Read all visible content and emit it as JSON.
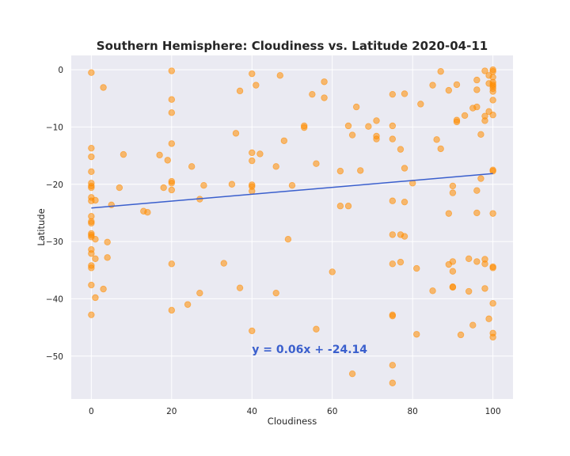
{
  "chart_data": {
    "type": "scatter",
    "title": "Southern Hemisphere: Cloudiness vs. Latitude 2020-04-11",
    "xlabel": "Cloudiness",
    "ylabel": "Latitude",
    "xlim": [
      -5,
      105
    ],
    "ylim": [
      -57.5,
      2.5
    ],
    "xticks": [
      0,
      20,
      40,
      60,
      80,
      100
    ],
    "yticks": [
      0,
      -10,
      -20,
      -30,
      -40,
      -50
    ],
    "grid": true,
    "colors": {
      "background": "#eaeaf2",
      "grid": "#ffffff",
      "points": "#ff8c00",
      "regression": "#3a5fcd",
      "annotation": "#3a5fcd"
    },
    "series": [
      {
        "type": "scatter",
        "points": [
          [
            0,
            -0.5
          ],
          [
            0,
            -13.7
          ],
          [
            0,
            -15.2
          ],
          [
            0,
            -17.8
          ],
          [
            0,
            -19.8
          ],
          [
            0,
            -20.3
          ],
          [
            0,
            -20.6
          ],
          [
            0,
            -22.3
          ],
          [
            0,
            -22.9
          ],
          [
            0,
            -25.6
          ],
          [
            0,
            -26.5
          ],
          [
            0,
            -26.8
          ],
          [
            0,
            -28.6
          ],
          [
            0,
            -28.9
          ],
          [
            0,
            -29.2
          ],
          [
            0,
            -31.4
          ],
          [
            0,
            -32.1
          ],
          [
            0,
            -34.2
          ],
          [
            0,
            -34.6
          ],
          [
            0,
            -37.6
          ],
          [
            0,
            -42.8
          ],
          [
            1,
            -22.8
          ],
          [
            1,
            -29.6
          ],
          [
            1,
            -33.0
          ],
          [
            1,
            -39.8
          ],
          [
            3,
            -3.1
          ],
          [
            3,
            -38.3
          ],
          [
            4,
            -30.1
          ],
          [
            4,
            -32.8
          ],
          [
            5,
            -23.6
          ],
          [
            7,
            -20.6
          ],
          [
            8,
            -14.8
          ],
          [
            13,
            -24.7
          ],
          [
            14,
            -24.9
          ],
          [
            17,
            -14.9
          ],
          [
            18,
            -20.6
          ],
          [
            19,
            -15.8
          ],
          [
            20,
            -0.2
          ],
          [
            20,
            -5.2
          ],
          [
            20,
            -7.5
          ],
          [
            20,
            -12.9
          ],
          [
            20,
            -19.5
          ],
          [
            20,
            -19.8
          ],
          [
            20,
            -21.0
          ],
          [
            20,
            -33.9
          ],
          [
            20,
            -42.0
          ],
          [
            24,
            -41.0
          ],
          [
            25,
            -16.9
          ],
          [
            27,
            -22.6
          ],
          [
            27,
            -39.0
          ],
          [
            28,
            -20.2
          ],
          [
            33,
            -33.8
          ],
          [
            35,
            -20.0
          ],
          [
            36,
            -11.1
          ],
          [
            37,
            -3.7
          ],
          [
            37,
            -38.1
          ],
          [
            40,
            -0.7
          ],
          [
            40,
            -14.5
          ],
          [
            40,
            -15.9
          ],
          [
            40,
            -20.1
          ],
          [
            40,
            -20.4
          ],
          [
            40,
            -21.2
          ],
          [
            40,
            -45.6
          ],
          [
            41,
            -2.7
          ],
          [
            42,
            -14.7
          ],
          [
            46,
            -16.9
          ],
          [
            46,
            -39.0
          ],
          [
            47,
            -1.0
          ],
          [
            48,
            -12.4
          ],
          [
            49,
            -29.6
          ],
          [
            50,
            -20.2
          ],
          [
            53,
            -9.8
          ],
          [
            53,
            -10.1
          ],
          [
            55,
            -4.3
          ],
          [
            56,
            -16.4
          ],
          [
            56,
            -45.3
          ],
          [
            58,
            -2.1
          ],
          [
            58,
            -4.9
          ],
          [
            60,
            -35.3
          ],
          [
            62,
            -17.7
          ],
          [
            62,
            -23.8
          ],
          [
            64,
            -9.8
          ],
          [
            64,
            -23.8
          ],
          [
            65,
            -11.4
          ],
          [
            65,
            -53.1
          ],
          [
            66,
            -6.5
          ],
          [
            67,
            -17.6
          ],
          [
            69,
            -9.9
          ],
          [
            71,
            -8.9
          ],
          [
            71,
            -11.6
          ],
          [
            71,
            -12.1
          ],
          [
            75,
            -4.3
          ],
          [
            75,
            -9.8
          ],
          [
            75,
            -12.1
          ],
          [
            75,
            -22.9
          ],
          [
            75,
            -28.8
          ],
          [
            75,
            -33.9
          ],
          [
            75,
            -42.8
          ],
          [
            75,
            -43.0
          ],
          [
            75,
            -51.6
          ],
          [
            75,
            -54.7
          ],
          [
            77,
            -13.9
          ],
          [
            77,
            -28.8
          ],
          [
            77,
            -33.6
          ],
          [
            78,
            -4.2
          ],
          [
            78,
            -17.2
          ],
          [
            78,
            -23.1
          ],
          [
            78,
            -29.1
          ],
          [
            80,
            -19.8
          ],
          [
            81,
            -34.7
          ],
          [
            81,
            -46.2
          ],
          [
            82,
            -6.0
          ],
          [
            85,
            -2.7
          ],
          [
            85,
            -38.6
          ],
          [
            86,
            -12.2
          ],
          [
            87,
            -0.3
          ],
          [
            87,
            -13.8
          ],
          [
            89,
            -3.6
          ],
          [
            89,
            -25.1
          ],
          [
            89,
            -34.0
          ],
          [
            90,
            -20.3
          ],
          [
            90,
            -21.5
          ],
          [
            90,
            -33.5
          ],
          [
            90,
            -35.2
          ],
          [
            90,
            -37.9
          ],
          [
            90,
            -38.0
          ],
          [
            91,
            -2.6
          ],
          [
            91,
            -8.8
          ],
          [
            91,
            -9.1
          ],
          [
            92,
            -46.3
          ],
          [
            93,
            -8.0
          ],
          [
            94,
            -33.0
          ],
          [
            94,
            -38.7
          ],
          [
            95,
            -6.7
          ],
          [
            95,
            -44.6
          ],
          [
            96,
            -1.8
          ],
          [
            96,
            -3.5
          ],
          [
            96,
            -6.5
          ],
          [
            96,
            -21.1
          ],
          [
            96,
            -25.0
          ],
          [
            96,
            -33.5
          ],
          [
            97,
            -11.3
          ],
          [
            97,
            -19.0
          ],
          [
            98,
            -0.2
          ],
          [
            98,
            -8.1
          ],
          [
            98,
            -8.9
          ],
          [
            98,
            -33.1
          ],
          [
            98,
            -33.9
          ],
          [
            98,
            -38.2
          ],
          [
            99,
            -1.0
          ],
          [
            99,
            -2.4
          ],
          [
            99,
            -7.3
          ],
          [
            99,
            -43.5
          ],
          [
            100,
            0
          ],
          [
            100,
            -0.3
          ],
          [
            100,
            -1.3
          ],
          [
            100,
            -2.2
          ],
          [
            100,
            -2.6
          ],
          [
            100,
            -2.9
          ],
          [
            100,
            -3.3
          ],
          [
            100,
            -3.8
          ],
          [
            100,
            -5.3
          ],
          [
            100,
            -7.9
          ],
          [
            100,
            -17.5
          ],
          [
            100,
            -17.7
          ],
          [
            100,
            -25.1
          ],
          [
            100,
            -34.4
          ],
          [
            100,
            -34.6
          ],
          [
            100,
            -40.8
          ],
          [
            100,
            -46.0
          ],
          [
            100,
            -46.7
          ]
        ]
      },
      {
        "type": "line",
        "x": [
          0,
          100
        ],
        "y": [
          -24.14,
          -18.14
        ]
      }
    ],
    "annotation": {
      "text": "y = 0.06x + -24.14",
      "x": 40,
      "y": -49.5
    }
  }
}
